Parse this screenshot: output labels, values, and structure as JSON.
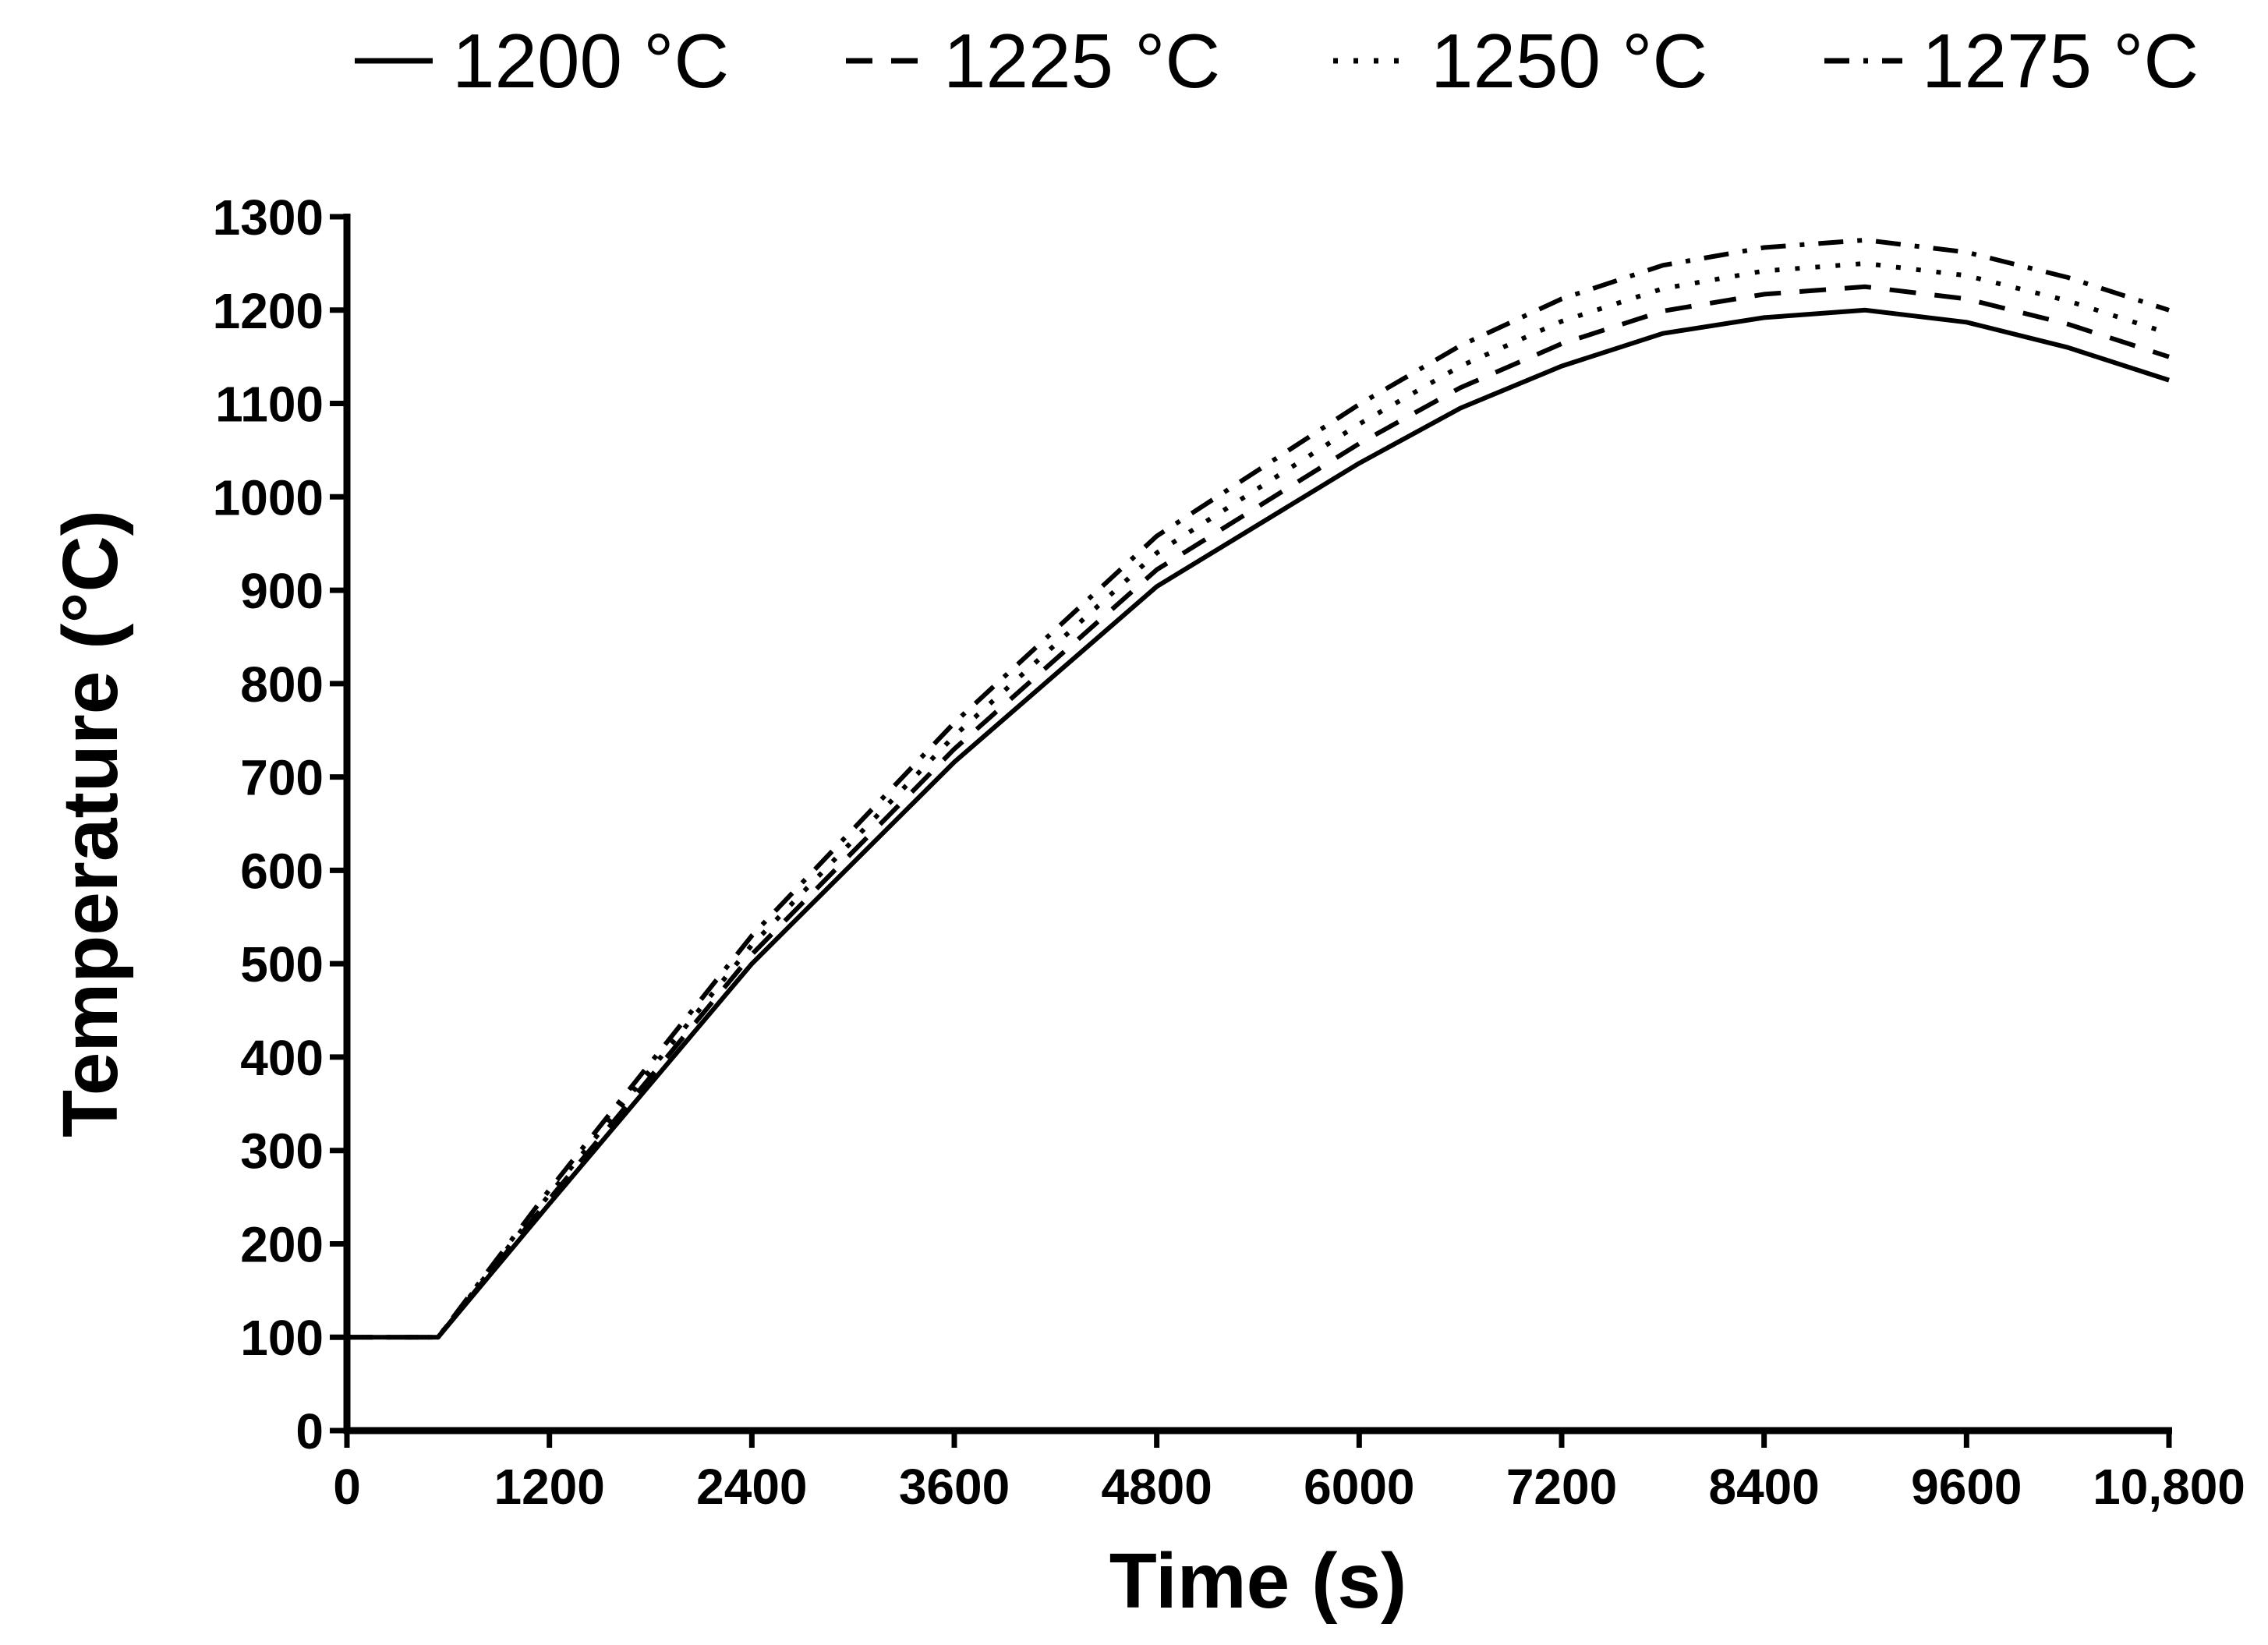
{
  "chart_data": {
    "type": "line",
    "title": "",
    "xlabel": "Time (s)",
    "ylabel": "Temperature (°C)",
    "xlim": [
      0,
      10800
    ],
    "ylim": [
      0,
      1300
    ],
    "xticks": [
      0,
      1200,
      2400,
      3600,
      4800,
      6000,
      7200,
      8400,
      9600,
      10800
    ],
    "xtick_labels": [
      "0",
      "1200",
      "2400",
      "3600",
      "4800",
      "6000",
      "7200",
      "8400",
      "9600",
      "10,800"
    ],
    "yticks": [
      0,
      100,
      200,
      300,
      400,
      500,
      600,
      700,
      800,
      900,
      1000,
      1100,
      1200,
      1300
    ],
    "ytick_labels": [
      "0",
      "100",
      "200",
      "300",
      "400",
      "500",
      "600",
      "700",
      "800",
      "900",
      "1000",
      "1100",
      "1200",
      "1300"
    ],
    "grid": false,
    "legend_position": "top",
    "series": [
      {
        "name": "1200 °C",
        "style": "solid",
        "x": [
          0,
          540,
          1200,
          2400,
          3600,
          4800,
          6000,
          6600,
          7200,
          7800,
          8400,
          9000,
          9600,
          10200,
          10800
        ],
        "y": [
          100,
          100,
          243,
          500,
          716,
          904,
          1036,
          1095,
          1140,
          1175,
          1192,
          1200,
          1187,
          1160,
          1125
        ]
      },
      {
        "name": "1225 °C",
        "style": "dash",
        "x": [
          0,
          540,
          1200,
          2400,
          3600,
          4800,
          6000,
          6600,
          7200,
          7800,
          8400,
          9000,
          9600,
          10200,
          10800
        ],
        "y": [
          100,
          100,
          248,
          510,
          730,
          922,
          1057,
          1117,
          1164,
          1199,
          1217,
          1225,
          1212,
          1185,
          1150
        ]
      },
      {
        "name": "1250 °C",
        "style": "dot",
        "x": [
          0,
          540,
          1200,
          2400,
          3600,
          4800,
          6000,
          6600,
          7200,
          7800,
          8400,
          9000,
          9600,
          10200,
          10800
        ],
        "y": [
          100,
          100,
          253,
          520,
          744,
          940,
          1078,
          1140,
          1188,
          1223,
          1242,
          1250,
          1237,
          1210,
          1175
        ]
      },
      {
        "name": "1275 °C",
        "style": "dashdot",
        "x": [
          0,
          540,
          1200,
          2400,
          3600,
          4800,
          6000,
          6600,
          7200,
          7800,
          8400,
          9000,
          9600,
          10200,
          10800
        ],
        "y": [
          100,
          100,
          258,
          530,
          758,
          958,
          1099,
          1162,
          1212,
          1248,
          1267,
          1275,
          1262,
          1235,
          1200
        ]
      }
    ]
  }
}
